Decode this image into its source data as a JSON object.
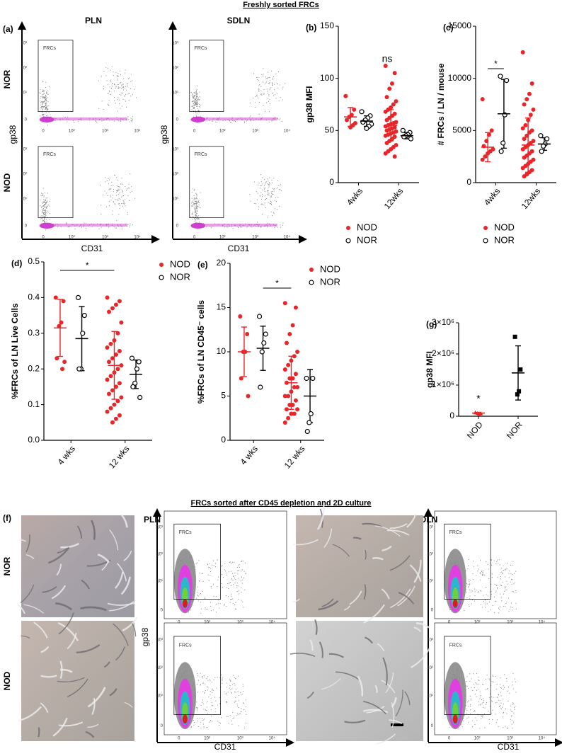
{
  "headers": {
    "fresh": "Freshly sorted FRCs",
    "cultured": "FRCs sorted after CD45 depletion and 2D culture"
  },
  "flow": {
    "panel_a": "(a)",
    "panel_f": "(f)",
    "tissues": [
      "PLN",
      "SDLN"
    ],
    "strains": [
      "NOR",
      "NOD"
    ],
    "x_label": "CD31",
    "y_label": "gp38",
    "gate": "FRCs",
    "x_ticks": [
      "0",
      "10²",
      "10³",
      "10⁴"
    ],
    "y_ticks": [
      "0",
      "10¹",
      "10²",
      "10³"
    ]
  },
  "chart_data": [
    {
      "type": "dot",
      "panel": "(b)",
      "ylabel": "gp38 MFI",
      "categories": [
        "4wks",
        "12wks"
      ],
      "ylim": [
        0,
        150
      ],
      "yticks": [
        0,
        50,
        100,
        150
      ],
      "annotations": [
        {
          "text": "ns"
        }
      ],
      "series": [
        {
          "name": "NOD",
          "color": "#e8262a",
          "marker": "filled",
          "values": [
            [
              83,
              70,
              65,
              63,
              60,
              57,
              55,
              53
            ],
            [
              112,
              105,
              95,
              90,
              82,
              78,
              75,
              72,
              70,
              68,
              66,
              64,
              62,
              60,
              58,
              57,
              56,
              55,
              54,
              53,
              52,
              51,
              50,
              49,
              48,
              47,
              46,
              45,
              44,
              42,
              40,
              38,
              36,
              34,
              32,
              30,
              28,
              25
            ]
          ],
          "mean": [
            63,
            55
          ],
          "sd": [
            9,
            15
          ]
        },
        {
          "name": "NOR",
          "color": "#000000",
          "marker": "open",
          "values": [
            [
              68,
              64,
              62,
              60,
              58,
              56,
              54,
              52
            ],
            [
              50,
              48,
              46,
              45,
              44,
              42
            ]
          ],
          "mean": [
            59,
            45
          ],
          "sd": [
            5,
            3
          ]
        }
      ]
    },
    {
      "type": "dot",
      "panel": "(c)",
      "ylabel": "# FRCs / LN / mouse",
      "categories": [
        "4wks",
        "12wks"
      ],
      "ylim": [
        0,
        15000
      ],
      "yticks": [
        0,
        5000,
        10000,
        15000
      ],
      "annotations": [
        {
          "text": "*"
        }
      ],
      "series": [
        {
          "name": "NOD",
          "color": "#e8262a",
          "marker": "filled",
          "values": [
            [
              8000,
              5000,
              4600,
              4000,
              3500,
              3200,
              3000,
              2800,
              2500,
              2200
            ],
            [
              12500,
              9500,
              8500,
              8000,
              7500,
              7000,
              6500,
              6000,
              5500,
              5200,
              5000,
              4800,
              4500,
              4200,
              4000,
              3800,
              3600,
              3400,
              3200,
              3000,
              2800,
              2600,
              2400,
              2200,
              2000,
              1800,
              1600,
              1400,
              1200,
              1000,
              800,
              600
            ]
          ],
          "mean": [
            3400,
            3600
          ],
          "sd": [
            1400,
            2600
          ]
        },
        {
          "name": "NOR",
          "color": "#000000",
          "marker": "open",
          "values": [
            [
              10200,
              9800,
              6500,
              3800,
              3000
            ],
            [
              4500,
              4200,
              3700,
              3500,
              3000
            ]
          ],
          "mean": [
            6600,
            3700
          ],
          "sd": [
            3300,
            600
          ]
        }
      ]
    },
    {
      "type": "dot",
      "panel": "(d)",
      "ylabel": "%FRCs of LN Live Cells",
      "categories": [
        "4 wks",
        "12 wks"
      ],
      "ylim": [
        0,
        0.5
      ],
      "yticks": [
        {
          "value": 0,
          "label": "0.0"
        },
        0.1,
        0.2,
        0.3,
        0.4,
        0.5
      ],
      "annotations": [
        {
          "text": "*"
        }
      ],
      "series": [
        {
          "name": "NOD",
          "color": "#e8262a",
          "marker": "filled",
          "values": [
            [
              0.4,
              0.39,
              0.33,
              0.32,
              0.23,
              0.22,
              0.2
            ],
            [
              0.4,
              0.39,
              0.38,
              0.37,
              0.36,
              0.33,
              0.3,
              0.28,
              0.27,
              0.26,
              0.25,
              0.24,
              0.23,
              0.22,
              0.21,
              0.2,
              0.19,
              0.18,
              0.17,
              0.16,
              0.15,
              0.14,
              0.13,
              0.12,
              0.11,
              0.1,
              0.09,
              0.08,
              0.07,
              0.06,
              0.05
            ]
          ],
          "mean": [
            0.315,
            0.21
          ],
          "sd": [
            0.08,
            0.095
          ]
        },
        {
          "name": "NOR",
          "color": "#000000",
          "marker": "open",
          "values": [
            [
              0.4,
              0.35,
              0.3,
              0.2,
              0.2
            ],
            [
              0.23,
              0.22,
              0.2,
              0.16,
              0.15,
              0.12
            ]
          ],
          "mean": [
            0.285,
            0.185
          ],
          "sd": [
            0.09,
            0.04
          ]
        }
      ]
    },
    {
      "type": "dot",
      "panel": "(e)",
      "ylabel": "%FRCs of LN CD45⁻ cells",
      "categories": [
        "4 wks",
        "12 wks"
      ],
      "ylim": [
        0,
        20
      ],
      "yticks": [
        0,
        5,
        10,
        15,
        20
      ],
      "annotations": [
        {
          "text": "*"
        }
      ],
      "series": [
        {
          "name": "NOD",
          "color": "#e8262a",
          "marker": "filled",
          "values": [
            [
              14,
              12,
              10,
              10,
              7,
              5
            ],
            [
              15.5,
              15,
              13,
              12,
              11,
              10,
              9.5,
              9,
              8.5,
              8,
              7.5,
              7,
              7,
              6.5,
              6,
              6,
              5.5,
              5,
              5,
              4.5,
              4,
              4,
              3.5,
              3.5,
              3,
              3,
              2.5,
              2
            ]
          ],
          "mean": [
            10,
            6.5
          ],
          "sd": [
            2.8,
            3
          ]
        },
        {
          "name": "NOR",
          "color": "#000000",
          "marker": "open",
          "values": [
            [
              14,
              12,
              11,
              10,
              6
            ],
            [
              7,
              7,
              3,
              2,
              1
            ]
          ],
          "mean": [
            10.4,
            5
          ],
          "sd": [
            2.5,
            3
          ]
        }
      ]
    },
    {
      "type": "dot",
      "panel": "(g)",
      "ylabel": "gp38 MFI",
      "categories": [
        "NOD",
        "NOR"
      ],
      "ylim": [
        0,
        3000000
      ],
      "yticks": [
        0,
        {
          "value": 1000000,
          "label": "1×10⁶"
        },
        {
          "value": 2000000,
          "label": "2×10⁶"
        },
        {
          "value": 3000000,
          "label": "3×10⁶"
        }
      ],
      "annotations": [
        {
          "text": "*"
        }
      ],
      "colors": [
        "#e8262a",
        "#000000"
      ],
      "markers": [
        "triangle",
        "square"
      ],
      "values": [
        [
          120000,
          90000,
          80000,
          100000
        ],
        [
          2550000,
          1500000,
          800000,
          700000
        ]
      ],
      "mean": [
        100000,
        1390000
      ],
      "sd": [
        20000,
        870000
      ]
    }
  ]
}
